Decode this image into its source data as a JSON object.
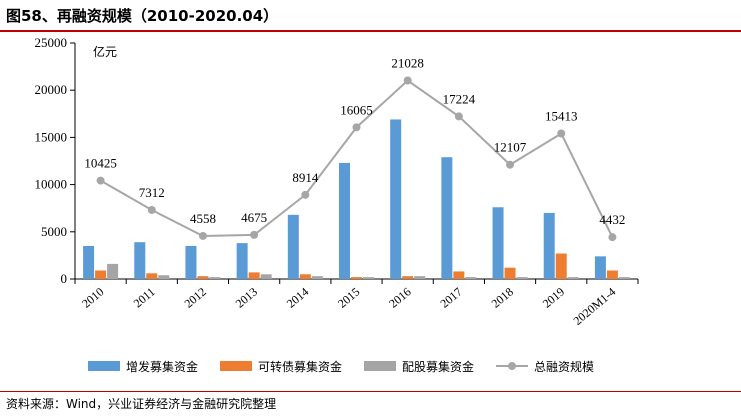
{
  "title": "图58、再融资规模（2010-2020.04）",
  "source": "资料来源：Wind，兴业证券经济与金融研究院整理",
  "colors": {
    "additional": "#5b9bd5",
    "convertible": "#ed7d31",
    "rights": "#a5a5a5",
    "total": "#a6a6a6",
    "accent": "#c00000"
  },
  "chart_data": {
    "type": "bar",
    "unit_label": "亿元",
    "categories": [
      "2010",
      "2011",
      "2012",
      "2013",
      "2014",
      "2015",
      "2016",
      "2017",
      "2018",
      "2019",
      "2020M1-4"
    ],
    "ylim": [
      0,
      25000
    ],
    "yticks": [
      0,
      5000,
      10000,
      15000,
      20000,
      25000
    ],
    "series": [
      {
        "name": "增发募集资金",
        "type": "bar",
        "color": "#5b9bd5",
        "values": [
          3500,
          3900,
          3500,
          3800,
          6800,
          12300,
          16900,
          12900,
          7600,
          7000,
          2400
        ]
      },
      {
        "name": "可转债募集资金",
        "type": "bar",
        "color": "#ed7d31",
        "values": [
          900,
          600,
          300,
          700,
          500,
          200,
          300,
          800,
          1200,
          2700,
          900
        ]
      },
      {
        "name": "配股募集资金",
        "type": "bar",
        "color": "#a5a5a5",
        "values": [
          1600,
          400,
          200,
          500,
          300,
          200,
          300,
          200,
          200,
          200,
          200
        ]
      },
      {
        "name": "总融资规模",
        "type": "line",
        "color": "#a6a6a6",
        "values": [
          10425,
          7312,
          4558,
          4675,
          8914,
          16065,
          21028,
          17224,
          12107,
          15413,
          4432
        ]
      }
    ],
    "grid": false,
    "legend": "bottom"
  }
}
